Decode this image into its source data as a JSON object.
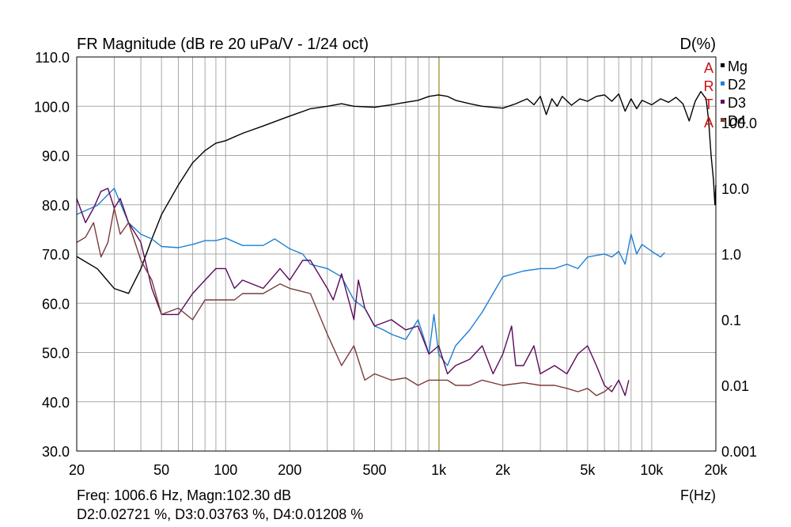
{
  "chart_data": {
    "type": "line",
    "title": "FR Magnitude (dB re 20 uPa/V - 1/24 oct)",
    "right_axis_title": "D(%)",
    "xlabel": "F(Hz)",
    "x_scale": "log",
    "xlim": [
      20,
      20000
    ],
    "ylim": [
      30,
      110
    ],
    "y2_scale": "log",
    "y2lim": [
      0.001,
      1000
    ],
    "x_ticks": [
      "20",
      "50",
      "100",
      "200",
      "500",
      "1k",
      "2k",
      "5k",
      "10k",
      "20k"
    ],
    "y_ticks": [
      "30.0",
      "40.0",
      "50.0",
      "60.0",
      "70.0",
      "80.0",
      "90.0",
      "100.0",
      "110.0"
    ],
    "y2_ticks": [
      "0.001",
      "0.01",
      "0.1",
      "1.0",
      "10.0",
      "100.0"
    ],
    "grid": true,
    "cursor_freq": 1006.6,
    "brand_letters": [
      "A",
      "R",
      "T",
      "A"
    ],
    "legend_position": "top-right",
    "colors": {
      "Mg": "#000000",
      "D2": "#1e7fd6",
      "D3": "#5a0a5a",
      "D4": "#7a3a3a",
      "cursor": "#b5b53a",
      "brand": "#cc1111"
    },
    "series": [
      {
        "name": "Mg",
        "axis": "left",
        "points": [
          [
            20,
            69.5
          ],
          [
            25,
            67
          ],
          [
            30,
            63
          ],
          [
            35,
            62
          ],
          [
            40,
            67
          ],
          [
            45,
            73
          ],
          [
            50,
            78
          ],
          [
            60,
            84
          ],
          [
            70,
            88.5
          ],
          [
            80,
            91
          ],
          [
            90,
            92.5
          ],
          [
            100,
            93
          ],
          [
            120,
            94.5
          ],
          [
            150,
            96
          ],
          [
            200,
            98
          ],
          [
            250,
            99.5
          ],
          [
            300,
            100
          ],
          [
            350,
            100.5
          ],
          [
            400,
            100
          ],
          [
            500,
            99.8
          ],
          [
            600,
            100.3
          ],
          [
            700,
            100.8
          ],
          [
            800,
            101.2
          ],
          [
            900,
            102
          ],
          [
            1000,
            102.3
          ],
          [
            1100,
            102
          ],
          [
            1200,
            101.2
          ],
          [
            1400,
            100.5
          ],
          [
            1600,
            100
          ],
          [
            2000,
            99.6
          ],
          [
            2300,
            100.5
          ],
          [
            2600,
            101.5
          ],
          [
            2800,
            100.3
          ],
          [
            3000,
            102
          ],
          [
            3200,
            98.3
          ],
          [
            3400,
            101.5
          ],
          [
            3600,
            100
          ],
          [
            3800,
            102
          ],
          [
            4200,
            100.2
          ],
          [
            4600,
            101.5
          ],
          [
            5000,
            101
          ],
          [
            5500,
            102
          ],
          [
            6000,
            102.3
          ],
          [
            6500,
            101
          ],
          [
            7000,
            102.5
          ],
          [
            7500,
            99
          ],
          [
            8000,
            101.5
          ],
          [
            8500,
            99.5
          ],
          [
            9000,
            101.2
          ],
          [
            10000,
            100.3
          ],
          [
            11000,
            101.5
          ],
          [
            12000,
            100.8
          ],
          [
            13000,
            101.8
          ],
          [
            14000,
            100.5
          ],
          [
            15000,
            97
          ],
          [
            16000,
            101
          ],
          [
            17000,
            103
          ],
          [
            18000,
            101.5
          ],
          [
            18500,
            97
          ],
          [
            19000,
            90
          ],
          [
            19500,
            85
          ],
          [
            19800,
            80
          ],
          [
            20000,
            84
          ]
        ]
      },
      {
        "name": "D2",
        "axis": "right",
        "points": [
          [
            20,
            4.0
          ],
          [
            25,
            5.5
          ],
          [
            28,
            8
          ],
          [
            30,
            10
          ],
          [
            32,
            6
          ],
          [
            35,
            3
          ],
          [
            40,
            2.0
          ],
          [
            45,
            1.7
          ],
          [
            50,
            1.3
          ],
          [
            60,
            1.25
          ],
          [
            70,
            1.4
          ],
          [
            80,
            1.6
          ],
          [
            90,
            1.6
          ],
          [
            100,
            1.75
          ],
          [
            120,
            1.35
          ],
          [
            150,
            1.35
          ],
          [
            170,
            1.7
          ],
          [
            200,
            1.2
          ],
          [
            230,
            1.0
          ],
          [
            250,
            0.7
          ],
          [
            300,
            0.6
          ],
          [
            350,
            0.45
          ],
          [
            400,
            0.2
          ],
          [
            450,
            0.15
          ],
          [
            500,
            0.08
          ],
          [
            550,
            0.07
          ],
          [
            600,
            0.06
          ],
          [
            700,
            0.05
          ],
          [
            800,
            0.1
          ],
          [
            900,
            0.03
          ],
          [
            950,
            0.12
          ],
          [
            1000,
            0.03
          ],
          [
            1100,
            0.02
          ],
          [
            1200,
            0.04
          ],
          [
            1400,
            0.07
          ],
          [
            1600,
            0.13
          ],
          [
            1800,
            0.25
          ],
          [
            2000,
            0.45
          ],
          [
            2500,
            0.55
          ],
          [
            3000,
            0.6
          ],
          [
            3500,
            0.6
          ],
          [
            4000,
            0.7
          ],
          [
            4500,
            0.6
          ],
          [
            5000,
            0.9
          ],
          [
            6000,
            1.0
          ],
          [
            6500,
            0.9
          ],
          [
            7000,
            1.1
          ],
          [
            7500,
            0.7
          ],
          [
            8000,
            2.0
          ],
          [
            8500,
            1.0
          ],
          [
            9000,
            1.4
          ],
          [
            10000,
            1.1
          ],
          [
            11000,
            0.9
          ],
          [
            11500,
            1.05
          ]
        ]
      },
      {
        "name": "D3",
        "axis": "right",
        "points": [
          [
            20,
            7
          ],
          [
            22,
            3
          ],
          [
            24,
            5
          ],
          [
            26,
            9
          ],
          [
            28,
            10
          ],
          [
            30,
            5
          ],
          [
            32,
            7
          ],
          [
            35,
            3
          ],
          [
            40,
            1.5
          ],
          [
            45,
            0.3
          ],
          [
            50,
            0.12
          ],
          [
            60,
            0.12
          ],
          [
            70,
            0.25
          ],
          [
            80,
            0.4
          ],
          [
            90,
            0.6
          ],
          [
            100,
            0.6
          ],
          [
            110,
            0.3
          ],
          [
            120,
            0.4
          ],
          [
            150,
            0.3
          ],
          [
            180,
            0.6
          ],
          [
            200,
            0.4
          ],
          [
            230,
            0.8
          ],
          [
            250,
            0.8
          ],
          [
            300,
            0.3
          ],
          [
            320,
            0.2
          ],
          [
            350,
            0.5
          ],
          [
            400,
            0.1
          ],
          [
            420,
            0.4
          ],
          [
            450,
            0.15
          ],
          [
            500,
            0.08
          ],
          [
            600,
            0.1
          ],
          [
            700,
            0.07
          ],
          [
            800,
            0.08
          ],
          [
            900,
            0.03
          ],
          [
            1000,
            0.04
          ],
          [
            1100,
            0.015
          ],
          [
            1200,
            0.02
          ],
          [
            1400,
            0.025
          ],
          [
            1600,
            0.04
          ],
          [
            1800,
            0.015
          ],
          [
            2000,
            0.03
          ],
          [
            2200,
            0.08
          ],
          [
            2300,
            0.02
          ],
          [
            2500,
            0.02
          ],
          [
            2800,
            0.04
          ],
          [
            3000,
            0.015
          ],
          [
            3500,
            0.02
          ],
          [
            4000,
            0.015
          ],
          [
            4500,
            0.03
          ],
          [
            5000,
            0.04
          ],
          [
            5500,
            0.02
          ],
          [
            6000,
            0.01
          ],
          [
            6500,
            0.008
          ],
          [
            7000,
            0.012
          ],
          [
            7500,
            0.007
          ],
          [
            7800,
            0.012
          ]
        ]
      },
      {
        "name": "D4",
        "axis": "right",
        "points": [
          [
            20,
            1.5
          ],
          [
            22,
            1.8
          ],
          [
            24,
            3
          ],
          [
            26,
            0.9
          ],
          [
            28,
            1.5
          ],
          [
            30,
            5
          ],
          [
            32,
            2
          ],
          [
            35,
            3
          ],
          [
            40,
            0.8
          ],
          [
            45,
            0.4
          ],
          [
            50,
            0.12
          ],
          [
            60,
            0.15
          ],
          [
            70,
            0.1
          ],
          [
            80,
            0.2
          ],
          [
            90,
            0.2
          ],
          [
            100,
            0.2
          ],
          [
            110,
            0.2
          ],
          [
            120,
            0.25
          ],
          [
            150,
            0.25
          ],
          [
            180,
            0.35
          ],
          [
            200,
            0.3
          ],
          [
            250,
            0.25
          ],
          [
            300,
            0.06
          ],
          [
            350,
            0.02
          ],
          [
            400,
            0.04
          ],
          [
            450,
            0.012
          ],
          [
            500,
            0.015
          ],
          [
            600,
            0.012
          ],
          [
            700,
            0.013
          ],
          [
            800,
            0.01
          ],
          [
            900,
            0.012
          ],
          [
            1000,
            0.012
          ],
          [
            1100,
            0.012
          ],
          [
            1200,
            0.01
          ],
          [
            1400,
            0.01
          ],
          [
            1600,
            0.012
          ],
          [
            2000,
            0.01
          ],
          [
            2500,
            0.011
          ],
          [
            3000,
            0.01
          ],
          [
            3500,
            0.01
          ],
          [
            4000,
            0.009
          ],
          [
            4500,
            0.008
          ],
          [
            5000,
            0.009
          ],
          [
            5500,
            0.007
          ],
          [
            6000,
            0.008
          ],
          [
            6500,
            0.01
          ]
        ]
      }
    ]
  },
  "readout": {
    "line1": "Freq: 1006.6 Hz, Magn:102.30 dB",
    "line2": "D2:0.02721 %, D3:0.03763 %, D4:0.01208 %"
  }
}
